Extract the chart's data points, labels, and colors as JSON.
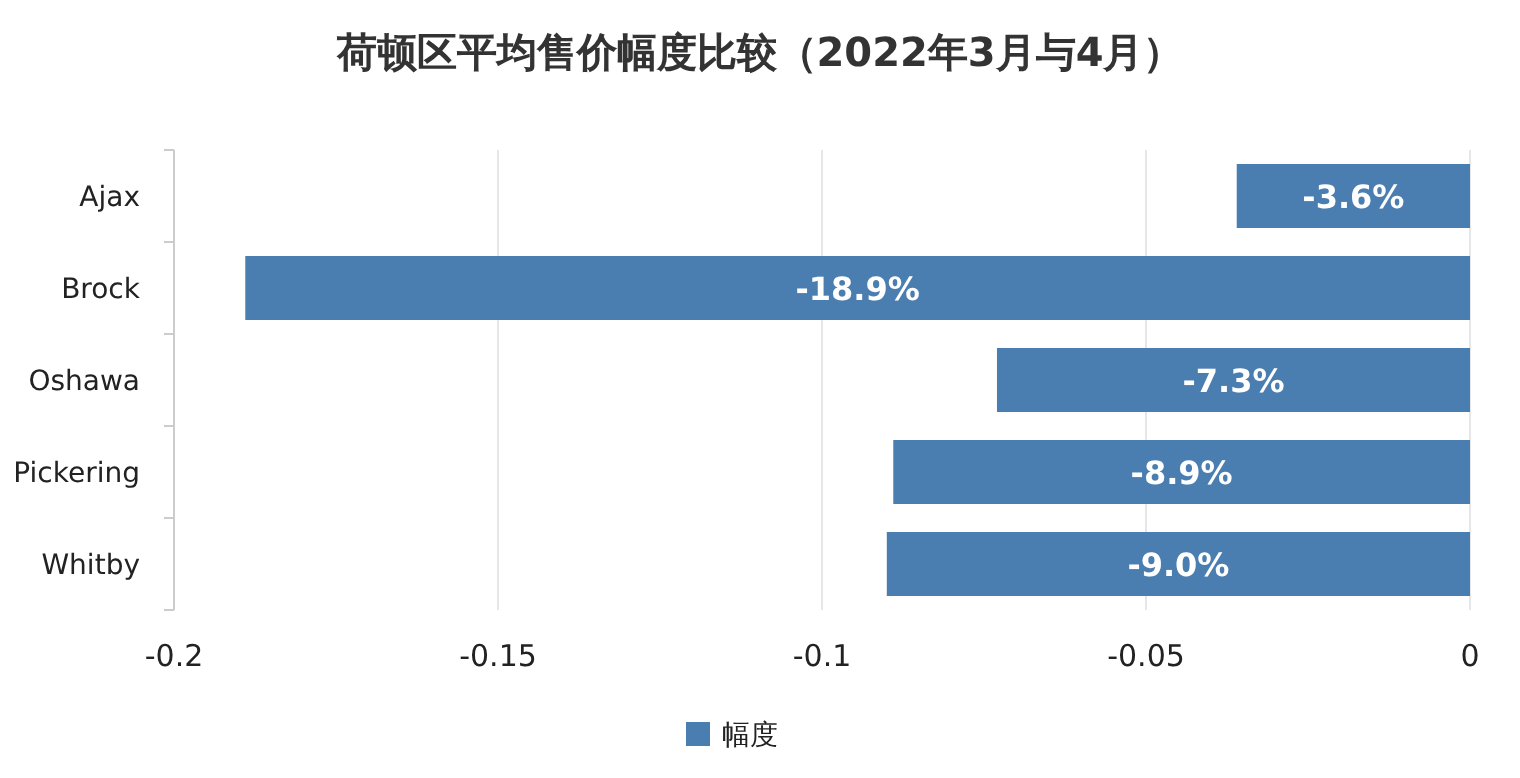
{
  "chart_data": {
    "type": "bar",
    "orientation": "horizontal",
    "title": "荷顿区平均售价幅度比较（2022年3月与4月）",
    "categories": [
      "Ajax",
      "Brock",
      "Oshawa",
      "Pickering",
      "Whitby"
    ],
    "series": [
      {
        "name": "幅度",
        "color": "#4a7eb0",
        "values": [
          -0.036,
          -0.189,
          -0.073,
          -0.089,
          -0.09
        ],
        "value_labels": [
          "-3.6%",
          "-18.9%",
          "-7.3%",
          "-8.9%",
          "-9.0%"
        ]
      }
    ],
    "xlim": [
      -0.2,
      0
    ],
    "xticks": [
      -0.2,
      -0.15,
      -0.1,
      -0.05,
      0
    ],
    "grid": "x",
    "legend": "bottom"
  }
}
